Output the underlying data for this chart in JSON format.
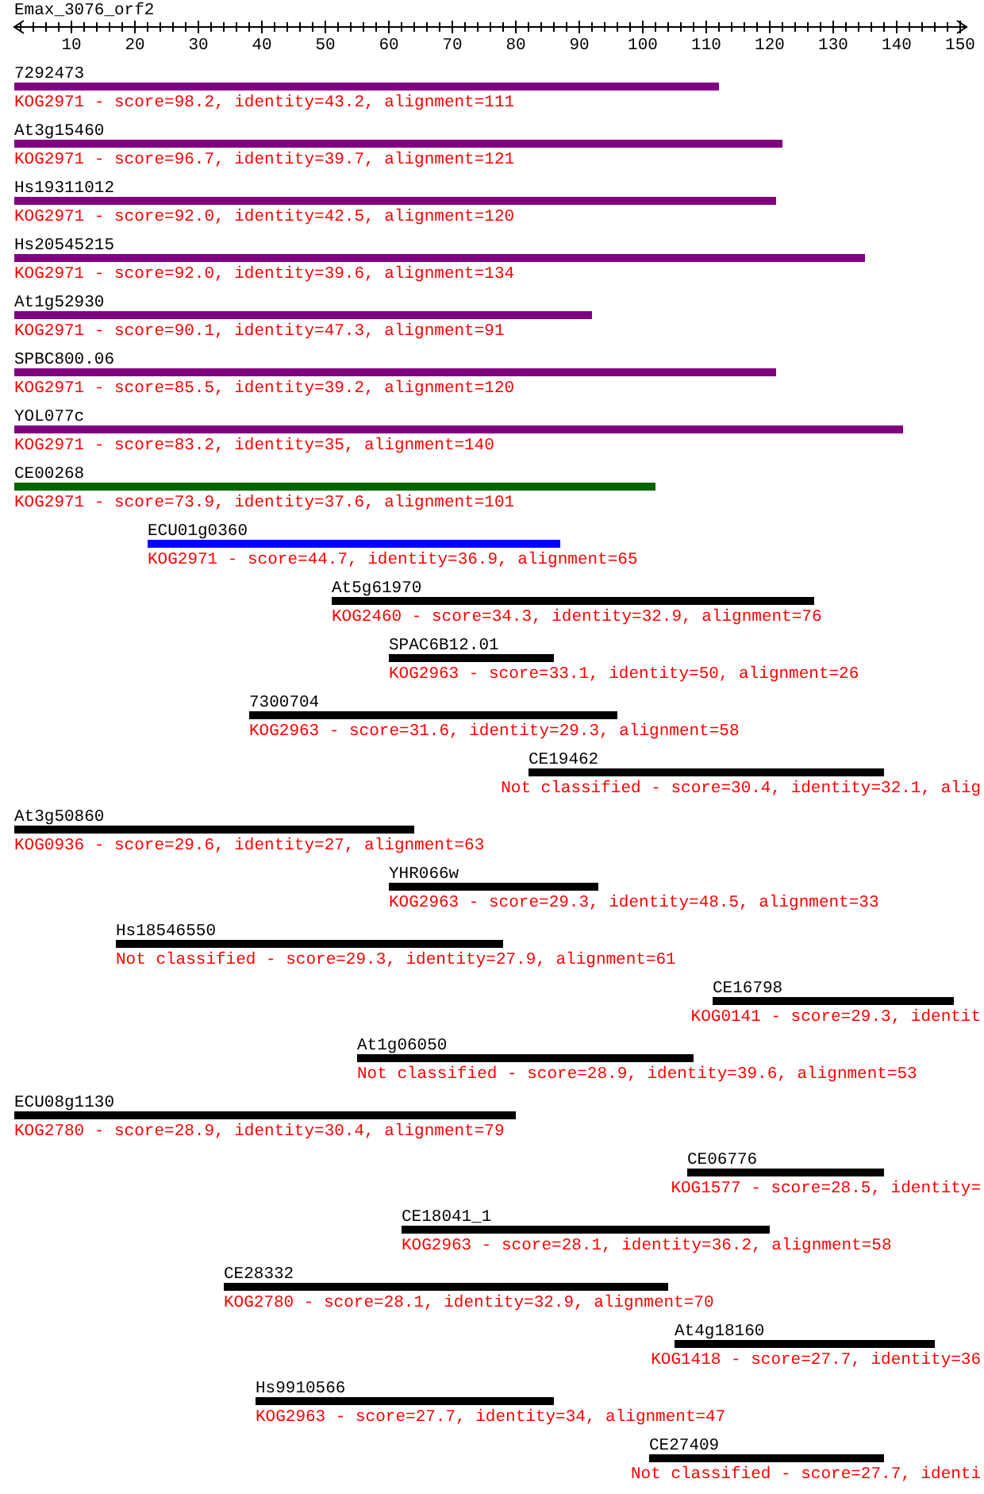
{
  "chart_data": {
    "type": "bar",
    "orientation": "horizontal",
    "title": "Emax_3076_orf2",
    "categories": [
      "7292473",
      "At3g15460",
      "Hs19311012",
      "Hs20545215",
      "At1g52930",
      "SPBC800.06",
      "YOL077c",
      "CE00268",
      "ECU01g0360",
      "At5g61970",
      "SPAC6B12.01",
      "7300704",
      "CE19462",
      "At3g50860",
      "YHR066w",
      "Hs18546550",
      "CE16798",
      "At1g06050",
      "ECU08g1130",
      "CE06776",
      "CE18041_1",
      "CE28332",
      "At4g18160",
      "Hs9910566",
      "CE27409"
    ],
    "base": [
      1,
      1,
      1,
      1,
      1,
      1,
      1,
      1,
      22,
      51,
      60,
      38,
      82,
      1,
      60,
      17,
      111,
      55,
      1,
      107,
      62,
      34,
      105,
      39,
      101
    ],
    "values": [
      111,
      121,
      120,
      134,
      91,
      120,
      140,
      101,
      65,
      76,
      26,
      58,
      56,
      63,
      33,
      61,
      38,
      53,
      79,
      31,
      58,
      70,
      41,
      47,
      37
    ],
    "colors": [
      "#800080",
      "#800080",
      "#800080",
      "#800080",
      "#800080",
      "#800080",
      "#800080",
      "#006400",
      "#0000ff",
      "#000000",
      "#000000",
      "#000000",
      "#000000",
      "#000000",
      "#000000",
      "#000000",
      "#000000",
      "#000000",
      "#000000",
      "#000000",
      "#000000",
      "#000000",
      "#000000",
      "#000000",
      "#000000"
    ],
    "annotations": [
      "KOG2971 - score=98.2, identity=43.2, alignment=111",
      "KOG2971 - score=96.7, identity=39.7, alignment=121",
      "KOG2971 - score=92.0, identity=42.5, alignment=120",
      "KOG2971 - score=92.0, identity=39.6, alignment=134",
      "KOG2971 - score=90.1, identity=47.3, alignment=91",
      "KOG2971 - score=85.5, identity=39.2, alignment=120",
      "KOG2971 - score=83.2, identity=35, alignment=140",
      "KOG2971 - score=73.9, identity=37.6, alignment=101",
      "KOG2971 - score=44.7, identity=36.9, alignment=65",
      "KOG2460 - score=34.3, identity=32.9, alignment=76",
      "KOG2963 - score=33.1, identity=50, alignment=26",
      "KOG2963 - score=31.6, identity=29.3, alignment=58",
      "Not classified - score=30.4, identity=32.1, alig",
      "KOG0936 - score=29.6, identity=27, alignment=63",
      "KOG2963 - score=29.3, identity=48.5, alignment=33",
      "Not classified - score=29.3, identity=27.9, alignment=61",
      "KOG0141 - score=29.3, identit",
      "Not classified - score=28.9, identity=39.6, alignment=53",
      "KOG2780 - score=28.9, identity=30.4, alignment=79",
      "KOG1577 - score=28.5, identity=",
      "KOG2963 - score=28.1, identity=36.2, alignment=58",
      "KOG2780 - score=28.1, identity=32.9, alignment=70",
      "KOG1418 - score=27.7, identity=36",
      "KOG2963 - score=27.7, identity=34, alignment=47",
      "Not classified - score=27.7, identi"
    ],
    "xlim": [
      1,
      151
    ],
    "xticks": [
      {
        "value": 2,
        "label": null
      },
      {
        "value": 4,
        "label": null
      },
      {
        "value": 6,
        "label": null
      },
      {
        "value": 8,
        "label": null
      },
      10,
      {
        "value": 12,
        "label": null
      },
      {
        "value": 14,
        "label": null
      },
      {
        "value": 16,
        "label": null
      },
      {
        "value": 18,
        "label": null
      },
      20,
      {
        "value": 22,
        "label": null
      },
      {
        "value": 24,
        "label": null
      },
      {
        "value": 26,
        "label": null
      },
      {
        "value": 28,
        "label": null
      },
      30,
      {
        "value": 32,
        "label": null
      },
      {
        "value": 34,
        "label": null
      },
      {
        "value": 36,
        "label": null
      },
      {
        "value": 38,
        "label": null
      },
      40,
      {
        "value": 42,
        "label": null
      },
      {
        "value": 44,
        "label": null
      },
      {
        "value": 46,
        "label": null
      },
      {
        "value": 48,
        "label": null
      },
      50,
      {
        "value": 52,
        "label": null
      },
      {
        "value": 54,
        "label": null
      },
      {
        "value": 56,
        "label": null
      },
      {
        "value": 58,
        "label": null
      },
      60,
      {
        "value": 62,
        "label": null
      },
      {
        "value": 64,
        "label": null
      },
      {
        "value": 66,
        "label": null
      },
      {
        "value": 68,
        "label": null
      },
      70,
      {
        "value": 72,
        "label": null
      },
      {
        "value": 74,
        "label": null
      },
      {
        "value": 76,
        "label": null
      },
      {
        "value": 78,
        "label": null
      },
      80,
      {
        "value": 82,
        "label": null
      },
      {
        "value": 84,
        "label": null
      },
      {
        "value": 86,
        "label": null
      },
      {
        "value": 88,
        "label": null
      },
      90,
      {
        "value": 92,
        "label": null
      },
      {
        "value": 94,
        "label": null
      },
      {
        "value": 96,
        "label": null
      },
      {
        "value": 98,
        "label": null
      },
      100,
      {
        "value": 102,
        "label": null
      },
      {
        "value": 104,
        "label": null
      },
      {
        "value": 106,
        "label": null
      },
      {
        "value": 108,
        "label": null
      },
      110,
      {
        "value": 112,
        "label": null
      },
      {
        "value": 114,
        "label": null
      },
      {
        "value": 116,
        "label": null
      },
      {
        "value": 118,
        "label": null
      },
      120,
      {
        "value": 122,
        "label": null
      },
      {
        "value": 124,
        "label": null
      },
      {
        "value": 126,
        "label": null
      },
      {
        "value": 128,
        "label": null
      },
      130,
      {
        "value": 132,
        "label": null
      },
      {
        "value": 134,
        "label": null
      },
      {
        "value": 136,
        "label": null
      },
      {
        "value": 138,
        "label": null
      },
      140,
      {
        "value": 142,
        "label": null
      },
      {
        "value": 144,
        "label": null
      },
      {
        "value": 146,
        "label": null
      },
      {
        "value": 148,
        "label": null
      },
      150
    ]
  }
}
